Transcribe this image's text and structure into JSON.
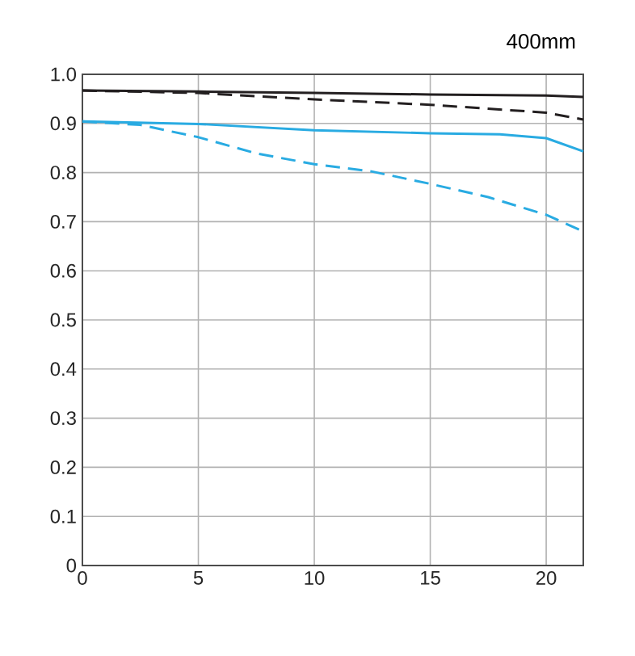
{
  "chart_data": {
    "type": "line",
    "title": "400mm",
    "xlim": [
      0,
      21.6
    ],
    "ylim": [
      0,
      1.0
    ],
    "xticks": [
      0,
      5,
      10,
      15,
      20
    ],
    "yticks": [
      0,
      {
        "value": 0.1,
        "label": "0.1"
      },
      {
        "value": 0.2,
        "label": "0.2"
      },
      {
        "value": 0.3,
        "label": "0.3"
      },
      {
        "value": 0.4,
        "label": "0.4"
      },
      {
        "value": 0.5,
        "label": "0.5"
      },
      {
        "value": 0.6,
        "label": "0.6"
      },
      {
        "value": 0.7,
        "label": "0.7"
      },
      {
        "value": 0.8,
        "label": "0.8"
      },
      {
        "value": 0.9,
        "label": "0.9"
      },
      {
        "value": 1.0,
        "label": "1.0"
      }
    ],
    "grid": true,
    "marker": "none",
    "series": [
      {
        "color": "#231f20",
        "line_style": "solid",
        "x": [
          0,
          5,
          10,
          15,
          20,
          21.6
        ],
        "values": [
          0.967,
          0.965,
          0.962,
          0.959,
          0.957,
          0.954
        ]
      },
      {
        "color": "#231f20",
        "line_style": "dashed",
        "x": [
          0,
          5,
          10,
          15,
          20,
          21.6
        ],
        "values": [
          0.967,
          0.962,
          0.949,
          0.938,
          0.922,
          0.908
        ]
      },
      {
        "color": "#29abe2",
        "line_style": "solid",
        "x": [
          0,
          5,
          10,
          15,
          18,
          20,
          21.6
        ],
        "values": [
          0.904,
          0.899,
          0.886,
          0.88,
          0.878,
          0.87,
          0.843
        ]
      },
      {
        "color": "#29abe2",
        "line_style": "dashed",
        "x": [
          0,
          2.5,
          5,
          7.5,
          10,
          12.5,
          15,
          17.5,
          20,
          21.6
        ],
        "values": [
          0.904,
          0.897,
          0.872,
          0.839,
          0.817,
          0.802,
          0.777,
          0.75,
          0.714,
          0.68
        ]
      }
    ]
  }
}
